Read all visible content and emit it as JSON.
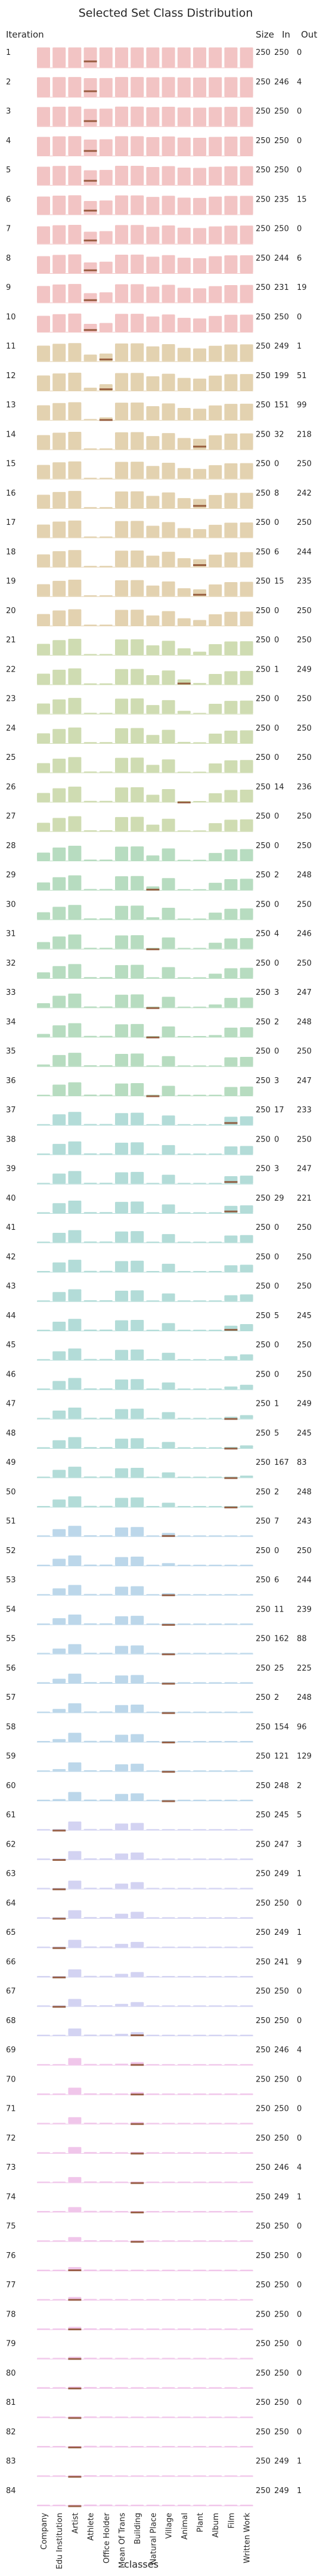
{
  "chart_data": {
    "type": "bar",
    "title": "Selected Set Class Distribution",
    "xlabel": "classes",
    "row_header": "Iteration",
    "table_headers": [
      "Size",
      "In",
      "Out"
    ],
    "categories": [
      "Company",
      "Edu Institution",
      "Artist",
      "Athlete",
      "Office Holder",
      "Mean Of Trans",
      "Building",
      "Natural Place",
      "Village",
      "Animal",
      "Plant",
      "Album",
      "Film",
      "Written Work"
    ],
    "rows": [
      {
        "iteration": "1",
        "size": "250",
        "in": "250",
        "out": "0"
      },
      {
        "iteration": "2",
        "size": "250",
        "in": "246",
        "out": "4"
      },
      {
        "iteration": "3",
        "size": "250",
        "in": "250",
        "out": "0"
      },
      {
        "iteration": "4",
        "size": "250",
        "in": "250",
        "out": "0"
      },
      {
        "iteration": "5",
        "size": "250",
        "in": "250",
        "out": "0"
      },
      {
        "iteration": "6",
        "size": "250",
        "in": "235",
        "out": "15"
      },
      {
        "iteration": "7",
        "size": "250",
        "in": "250",
        "out": "0"
      },
      {
        "iteration": "8",
        "size": "250",
        "in": "244",
        "out": "6"
      },
      {
        "iteration": "9",
        "size": "250",
        "in": "231",
        "out": "19"
      },
      {
        "iteration": "10",
        "size": "250",
        "in": "250",
        "out": "0"
      },
      {
        "iteration": "11",
        "size": "250",
        "in": "249",
        "out": "1"
      },
      {
        "iteration": "12",
        "size": "250",
        "in": "199",
        "out": "51"
      },
      {
        "iteration": "13",
        "size": "250",
        "in": "151",
        "out": "99"
      },
      {
        "iteration": "14",
        "size": "250",
        "in": "32",
        "out": "218"
      },
      {
        "iteration": "15",
        "size": "250",
        "in": "0",
        "out": "250"
      },
      {
        "iteration": "16",
        "size": "250",
        "in": "8",
        "out": "242"
      },
      {
        "iteration": "17",
        "size": "250",
        "in": "0",
        "out": "250"
      },
      {
        "iteration": "18",
        "size": "250",
        "in": "6",
        "out": "244"
      },
      {
        "iteration": "19",
        "size": "250",
        "in": "15",
        "out": "235"
      },
      {
        "iteration": "20",
        "size": "250",
        "in": "0",
        "out": "250"
      },
      {
        "iteration": "21",
        "size": "250",
        "in": "0",
        "out": "250"
      },
      {
        "iteration": "22",
        "size": "250",
        "in": "1",
        "out": "249"
      },
      {
        "iteration": "23",
        "size": "250",
        "in": "0",
        "out": "250"
      },
      {
        "iteration": "24",
        "size": "250",
        "in": "0",
        "out": "250"
      },
      {
        "iteration": "25",
        "size": "250",
        "in": "0",
        "out": "250"
      },
      {
        "iteration": "26",
        "size": "250",
        "in": "14",
        "out": "236"
      },
      {
        "iteration": "27",
        "size": "250",
        "in": "0",
        "out": "250"
      },
      {
        "iteration": "28",
        "size": "250",
        "in": "0",
        "out": "250"
      },
      {
        "iteration": "29",
        "size": "250",
        "in": "2",
        "out": "248"
      },
      {
        "iteration": "30",
        "size": "250",
        "in": "0",
        "out": "250"
      },
      {
        "iteration": "31",
        "size": "250",
        "in": "4",
        "out": "246"
      },
      {
        "iteration": "32",
        "size": "250",
        "in": "0",
        "out": "250"
      },
      {
        "iteration": "33",
        "size": "250",
        "in": "3",
        "out": "247"
      },
      {
        "iteration": "34",
        "size": "250",
        "in": "2",
        "out": "248"
      },
      {
        "iteration": "35",
        "size": "250",
        "in": "0",
        "out": "250"
      },
      {
        "iteration": "36",
        "size": "250",
        "in": "3",
        "out": "247"
      },
      {
        "iteration": "37",
        "size": "250",
        "in": "17",
        "out": "233"
      },
      {
        "iteration": "38",
        "size": "250",
        "in": "0",
        "out": "250"
      },
      {
        "iteration": "39",
        "size": "250",
        "in": "3",
        "out": "247"
      },
      {
        "iteration": "40",
        "size": "250",
        "in": "29",
        "out": "221"
      },
      {
        "iteration": "41",
        "size": "250",
        "in": "0",
        "out": "250"
      },
      {
        "iteration": "42",
        "size": "250",
        "in": "0",
        "out": "250"
      },
      {
        "iteration": "43",
        "size": "250",
        "in": "0",
        "out": "250"
      },
      {
        "iteration": "44",
        "size": "250",
        "in": "5",
        "out": "245"
      },
      {
        "iteration": "45",
        "size": "250",
        "in": "0",
        "out": "250"
      },
      {
        "iteration": "46",
        "size": "250",
        "in": "0",
        "out": "250"
      },
      {
        "iteration": "47",
        "size": "250",
        "in": "1",
        "out": "249"
      },
      {
        "iteration": "48",
        "size": "250",
        "in": "5",
        "out": "245"
      },
      {
        "iteration": "49",
        "size": "250",
        "in": "167",
        "out": "83"
      },
      {
        "iteration": "50",
        "size": "250",
        "in": "2",
        "out": "248"
      },
      {
        "iteration": "51",
        "size": "250",
        "in": "7",
        "out": "243"
      },
      {
        "iteration": "52",
        "size": "250",
        "in": "0",
        "out": "250"
      },
      {
        "iteration": "53",
        "size": "250",
        "in": "6",
        "out": "244"
      },
      {
        "iteration": "54",
        "size": "250",
        "in": "11",
        "out": "239"
      },
      {
        "iteration": "55",
        "size": "250",
        "in": "162",
        "out": "88"
      },
      {
        "iteration": "56",
        "size": "250",
        "in": "25",
        "out": "225"
      },
      {
        "iteration": "57",
        "size": "250",
        "in": "2",
        "out": "248"
      },
      {
        "iteration": "58",
        "size": "250",
        "in": "154",
        "out": "96"
      },
      {
        "iteration": "59",
        "size": "250",
        "in": "121",
        "out": "129"
      },
      {
        "iteration": "60",
        "size": "250",
        "in": "248",
        "out": "2"
      },
      {
        "iteration": "61",
        "size": "250",
        "in": "245",
        "out": "5"
      },
      {
        "iteration": "62",
        "size": "250",
        "in": "247",
        "out": "3"
      },
      {
        "iteration": "63",
        "size": "250",
        "in": "249",
        "out": "1"
      },
      {
        "iteration": "64",
        "size": "250",
        "in": "250",
        "out": "0"
      },
      {
        "iteration": "65",
        "size": "250",
        "in": "249",
        "out": "1"
      },
      {
        "iteration": "66",
        "size": "250",
        "in": "241",
        "out": "9"
      },
      {
        "iteration": "67",
        "size": "250",
        "in": "250",
        "out": "0"
      },
      {
        "iteration": "68",
        "size": "250",
        "in": "250",
        "out": "0"
      },
      {
        "iteration": "69",
        "size": "250",
        "in": "246",
        "out": "4"
      },
      {
        "iteration": "70",
        "size": "250",
        "in": "250",
        "out": "0"
      },
      {
        "iteration": "71",
        "size": "250",
        "in": "250",
        "out": "0"
      },
      {
        "iteration": "72",
        "size": "250",
        "in": "250",
        "out": "0"
      },
      {
        "iteration": "73",
        "size": "250",
        "in": "246",
        "out": "4"
      },
      {
        "iteration": "74",
        "size": "250",
        "in": "249",
        "out": "1"
      },
      {
        "iteration": "75",
        "size": "250",
        "in": "250",
        "out": "0"
      },
      {
        "iteration": "76",
        "size": "250",
        "in": "250",
        "out": "0"
      },
      {
        "iteration": "77",
        "size": "250",
        "in": "250",
        "out": "0"
      },
      {
        "iteration": "78",
        "size": "250",
        "in": "250",
        "out": "0"
      },
      {
        "iteration": "79",
        "size": "250",
        "in": "250",
        "out": "0"
      },
      {
        "iteration": "80",
        "size": "250",
        "in": "250",
        "out": "0"
      },
      {
        "iteration": "81",
        "size": "250",
        "in": "250",
        "out": "0"
      },
      {
        "iteration": "82",
        "size": "250",
        "in": "250",
        "out": "0"
      },
      {
        "iteration": "83",
        "size": "250",
        "in": "249",
        "out": "1"
      },
      {
        "iteration": "84",
        "size": "250",
        "in": "249",
        "out": "1"
      }
    ],
    "colors": {
      "phase_1": "#f2c4c4",
      "phase_2": "#e3d2b0",
      "phase_3": "#cfdcb2",
      "phase_4": "#b7dcc0",
      "phase_5": "#b3dcd8",
      "phase_6": "#bcd7ea",
      "phase_7": "#d3d3f2",
      "phase_8": "#f0c6ea",
      "new_selection": "#8a4a2a",
      "grid": "#ffffff"
    }
  }
}
